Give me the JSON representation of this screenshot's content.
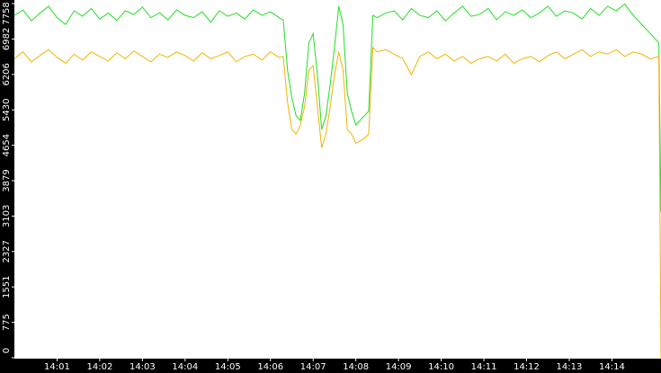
{
  "chart_data": {
    "type": "line",
    "x": [
      0,
      0.2,
      0.4,
      0.6,
      0.8,
      1,
      1.2,
      1.4,
      1.6,
      1.8,
      2,
      2.2,
      2.4,
      2.6,
      2.8,
      3,
      3.2,
      3.4,
      3.6,
      3.8,
      4,
      4.2,
      4.4,
      4.6,
      4.8,
      5,
      5.2,
      5.4,
      5.6,
      5.8,
      6,
      6.2,
      6.3,
      6.4,
      6.5,
      6.6,
      6.7,
      6.8,
      6.9,
      7,
      7.1,
      7.2,
      7.3,
      7.4,
      7.5,
      7.6,
      7.7,
      7.8,
      7.9,
      8,
      8.1,
      8.2,
      8.3,
      8.4,
      8.5,
      8.7,
      8.9,
      9.1,
      9.3,
      9.5,
      9.7,
      9.9,
      10.1,
      10.3,
      10.5,
      10.7,
      10.9,
      11.1,
      11.3,
      11.5,
      11.7,
      11.9,
      12.1,
      12.3,
      12.5,
      12.7,
      12.9,
      13.1,
      13.3,
      13.5,
      13.7,
      13.9,
      14.1,
      14.3,
      14.5,
      14.7,
      14.9,
      15.1,
      15.15
    ],
    "series": [
      {
        "color": "#22dd22",
        "values": [
          7500,
          7620,
          7380,
          7550,
          7700,
          7450,
          7300,
          7600,
          7480,
          7650,
          7420,
          7550,
          7390,
          7600,
          7520,
          7680,
          7450,
          7560,
          7400,
          7620,
          7500,
          7450,
          7580,
          7350,
          7600,
          7480,
          7550,
          7420,
          7620,
          7500,
          7580,
          7450,
          7400,
          6300,
          5700,
          5300,
          5200,
          5800,
          6900,
          7100,
          6200,
          5000,
          5300,
          6000,
          6800,
          7700,
          7300,
          5800,
          5400,
          5100,
          5200,
          5300,
          5400,
          7500,
          7450,
          7550,
          7600,
          7400,
          7650,
          7500,
          7450,
          7600,
          7380,
          7550,
          7700,
          7480,
          7520,
          7650,
          7400,
          7580,
          7500,
          7620,
          7450,
          7550,
          7700,
          7480,
          7600,
          7550,
          7420,
          7650,
          7500,
          7700,
          7600,
          7750,
          7500,
          7300,
          7100,
          6900,
          3200
        ]
      },
      {
        "color": "#f0b400",
        "values": [
          6550,
          6700,
          6480,
          6620,
          6750,
          6580,
          6450,
          6650,
          6520,
          6700,
          6600,
          6500,
          6680,
          6550,
          6720,
          6600,
          6480,
          6650,
          6580,
          6700,
          6620,
          6500,
          6680,
          6550,
          6620,
          6700,
          6480,
          6600,
          6650,
          6520,
          6700,
          6580,
          6600,
          5600,
          5000,
          4900,
          5100,
          5500,
          6300,
          6400,
          5500,
          4600,
          4900,
          5500,
          6200,
          6700,
          6300,
          5000,
          4900,
          4700,
          4750,
          4800,
          4900,
          6800,
          6700,
          6750,
          6650,
          6550,
          6200,
          6600,
          6700,
          6550,
          6650,
          6500,
          6600,
          6450,
          6550,
          6600,
          6500,
          6650,
          6450,
          6550,
          6600,
          6480,
          6620,
          6700,
          6550,
          6650,
          6750,
          6600,
          6700,
          6650,
          6750,
          6600,
          6700,
          6650,
          6550,
          6600,
          0
        ]
      }
    ],
    "xlim": [
      0,
      15.15
    ],
    "xticks": [
      {
        "value": 1,
        "label": "14:01"
      },
      {
        "value": 2,
        "label": "14:02"
      },
      {
        "value": 3,
        "label": "14:03"
      },
      {
        "value": 4,
        "label": "14:04"
      },
      {
        "value": 5,
        "label": "14:05"
      },
      {
        "value": 6,
        "label": "14:06"
      },
      {
        "value": 7,
        "label": "14:07"
      },
      {
        "value": 8,
        "label": "14:08"
      },
      {
        "value": 9,
        "label": "14:09"
      },
      {
        "value": 10,
        "label": "14:10"
      },
      {
        "value": 11,
        "label": "14:11"
      },
      {
        "value": 12,
        "label": "14:12"
      },
      {
        "value": 13,
        "label": "14:13"
      },
      {
        "value": 14,
        "label": "14:14"
      }
    ],
    "ylim": [
      0,
      7758
    ],
    "yticks": [
      0,
      775,
      1551,
      2327,
      3103,
      3879,
      4654,
      5430,
      6206,
      6982,
      7758
    ]
  }
}
